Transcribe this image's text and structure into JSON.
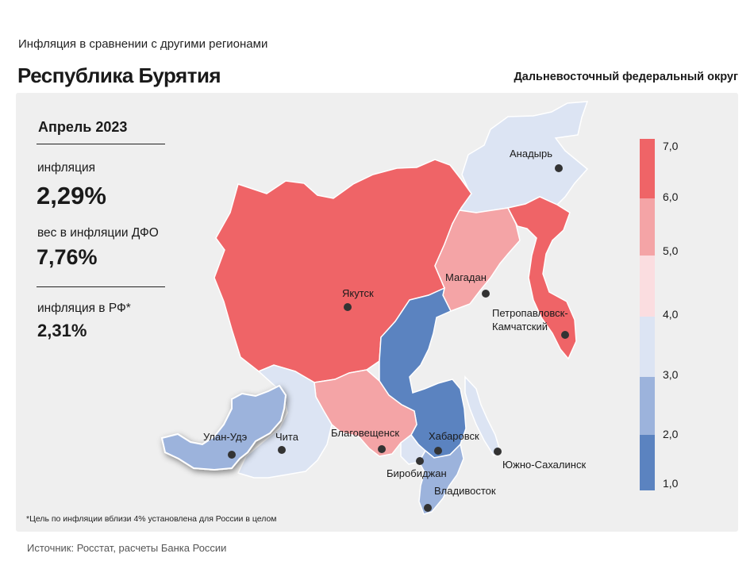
{
  "header": {
    "subtitle": "Инфляция  в сравнении  с другими  регионами",
    "region": "Республика Бурятия",
    "district": "Дальневосточный федеральный округ"
  },
  "stats": {
    "period": "Апрель 2023",
    "inflation_label": "инфляция",
    "inflation_value": "2,29%",
    "weight_label": "вес в инфляции  ДФО",
    "weight_value": "7,76%",
    "rf_label": "инфляция  в РФ*",
    "rf_value": "2,31%"
  },
  "map": {
    "highlighted_region": "Улан-Удэ",
    "cities": [
      {
        "name": "Анадырь",
        "bin": "3-4"
      },
      {
        "name": "Якутск",
        "bin": "6-7"
      },
      {
        "name": "Магадан",
        "bin": "5-6"
      },
      {
        "name": "Петропавловск-Камчатский",
        "lines": [
          "Петропавловск-",
          "Камчатский"
        ],
        "bin": "6-7"
      },
      {
        "name": "Улан-Удэ",
        "bin": "2-3"
      },
      {
        "name": "Чита",
        "bin": "3-4"
      },
      {
        "name": "Благовещенск",
        "bin": "5-6"
      },
      {
        "name": "Хабаровск",
        "bin": "1-2"
      },
      {
        "name": "Биробиджан",
        "bin": "3-4"
      },
      {
        "name": "Южно-Сахалинск",
        "bin": "3-4"
      },
      {
        "name": "Владивосток",
        "bin": "2-3"
      }
    ]
  },
  "legend": {
    "ticks": [
      "7,0",
      "6,0",
      "5,0",
      "4,0",
      "3,0",
      "2,0",
      "1,0"
    ],
    "bins": [
      {
        "range": "6-7",
        "color": "#ef6467"
      },
      {
        "range": "5-6",
        "color": "#f4a4a6"
      },
      {
        "range": "4-5",
        "color": "#fbdde0"
      },
      {
        "range": "3-4",
        "color": "#dce4f3"
      },
      {
        "range": "2-3",
        "color": "#9cb3dc"
      },
      {
        "range": "1-2",
        "color": "#5b83c0"
      }
    ]
  },
  "footnote": "*Цель по инфляции вблизи 4% установлена для России в целом",
  "source": "Источник: Росстат, расчеты Банка России"
}
